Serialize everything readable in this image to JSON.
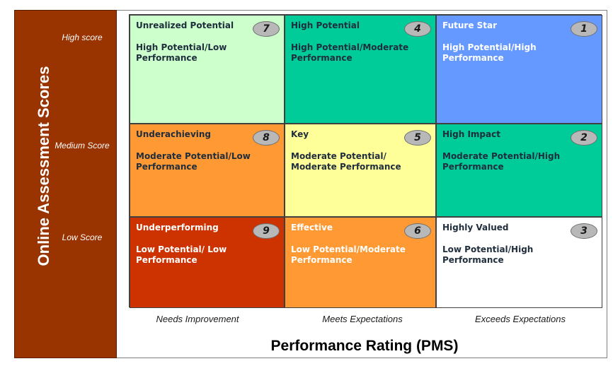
{
  "y_axis": {
    "title": "Online Assessment Scores",
    "levels": [
      "High score",
      "Medium Score",
      "Low Score"
    ]
  },
  "x_axis": {
    "title": "Performance Rating (PMS)",
    "levels": [
      "Needs Improvement",
      "Meets Expectations",
      "Exceeds Expectations"
    ]
  },
  "cells": [
    {
      "title": "Unrealized  Potential",
      "desc": "High Potential/Low Performance",
      "number": "7",
      "color": "#ccffcc",
      "text_color": "#1f2d3d"
    },
    {
      "title": "High Potential",
      "desc": "High Potential/Moderate Performance",
      "number": "4",
      "color": "#00cc99",
      "text_color": "#1f2d3d"
    },
    {
      "title": "Future Star",
      "desc": "High Potential/High  Performance",
      "number": "1",
      "color": "#6699ff",
      "text_color": "#ffffff"
    },
    {
      "title": "Underachieving",
      "desc": "Moderate Potential/Low Performance",
      "number": "8",
      "color": "#ff9933",
      "text_color": "#1f2d3d"
    },
    {
      "title": "Key",
      "desc": "Moderate Potential/ Moderate Performance",
      "number": "5",
      "color": "#ffff99",
      "text_color": "#1f2d3d"
    },
    {
      "title": "High Impact",
      "desc": "Moderate Potential/High Performance",
      "number": "2",
      "color": "#00cc99",
      "text_color": "#1f2d3d"
    },
    {
      "title": "Underperforming",
      "desc": "Low Potential/ Low Performance",
      "number": "9",
      "color": "#cc3300",
      "text_color": "#ffffff"
    },
    {
      "title": "Effective",
      "desc": "Low Potential/Moderate Performance",
      "number": "6",
      "color": "#ff9933",
      "text_color": "#ffffff"
    },
    {
      "title": "Highly Valued",
      "desc": "Low Potential/High  Performance",
      "number": "3",
      "color": "#ffffff",
      "text_color": "#1f2d3d"
    }
  ]
}
